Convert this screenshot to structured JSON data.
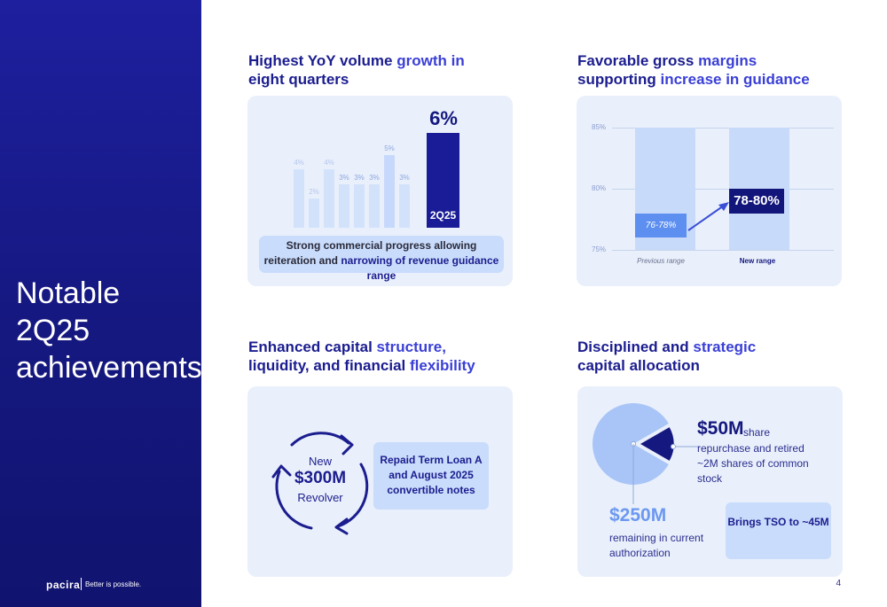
{
  "sidebar": {
    "title": "Notable 2Q25 achievements",
    "logo": "pacira",
    "tagline": "Better is possible."
  },
  "page_number": "4",
  "panel1": {
    "heading_pre": "Highest YoY volume ",
    "heading_hl": "growth in",
    "heading_post": "eight quarters",
    "big_value": "6%",
    "main_bar_label": "2Q25",
    "callout_pre": "Strong commercial progress allowing reiteration and ",
    "callout_hl": "narrowing of revenue guidance range"
  },
  "panel2": {
    "heading_pre": "Favorable gross ",
    "heading_hl1": "margins",
    "heading_mid": "supporting ",
    "heading_hl2": "increase in guidance",
    "y_ticks": [
      "85%",
      "80%",
      "75%"
    ],
    "prev_range": "76-78%",
    "new_range": "78-80%",
    "prev_label": "Previous range",
    "new_label": "New range"
  },
  "panel3": {
    "heading_pre": "Enhanced capital ",
    "heading_hl1": "structure,",
    "heading_mid": "liquidity, and financial ",
    "heading_hl2": "flexibility",
    "cycle_top": "New",
    "cycle_amount": "$300M",
    "cycle_bottom": "Revolver",
    "repaid_text": "Repaid Term Loan A and August 2025 convertible notes"
  },
  "panel4": {
    "heading_pre": "Disciplined and ",
    "heading_hl": "strategic",
    "heading_post": "capital allocation",
    "amount1": "$50M",
    "amount1_word": "share",
    "amount1_desc": "repurchase and retired ~2M shares of common stock",
    "amount2": "$250M",
    "amount2_desc": "remaining in current authorization",
    "tso_text": "Brings TSO to ~45M"
  },
  "colors": {
    "navy": "#15187f",
    "accent": "#3a3fd6",
    "panel_bg": "#e9f0fb",
    "light_blue": "#c9dcfb",
    "pie_light": "#a9c5f8"
  },
  "chart_data": [
    {
      "type": "bar",
      "title": "Highest YoY volume growth in eight quarters",
      "categories": [
        "",
        "",
        "",
        "",
        "",
        "",
        "",
        "",
        "2Q25"
      ],
      "values": [
        4,
        2,
        4,
        3,
        3,
        3,
        5,
        3,
        6
      ],
      "data_labels": [
        "4%",
        "2%",
        "4%",
        "3%",
        "3%",
        "3%",
        "5%",
        "3%",
        "6%"
      ],
      "unit": "%",
      "highlight_index": 8,
      "ylim": [
        0,
        6
      ]
    },
    {
      "type": "bar",
      "title": "Favorable gross margins supporting increase in guidance",
      "categories": [
        "Previous range",
        "New range"
      ],
      "ranges": [
        [
          76,
          78
        ],
        [
          78,
          80
        ]
      ],
      "range_labels": [
        "76-78%",
        "78-80%"
      ],
      "ylim": [
        75,
        85
      ],
      "y_ticks": [
        "75%",
        "80%",
        "85%"
      ],
      "grid": true
    },
    {
      "type": "pie",
      "slices": [
        {
          "label": "$50M",
          "value": 50
        },
        {
          "label": "$250M",
          "value": 250
        }
      ]
    }
  ]
}
